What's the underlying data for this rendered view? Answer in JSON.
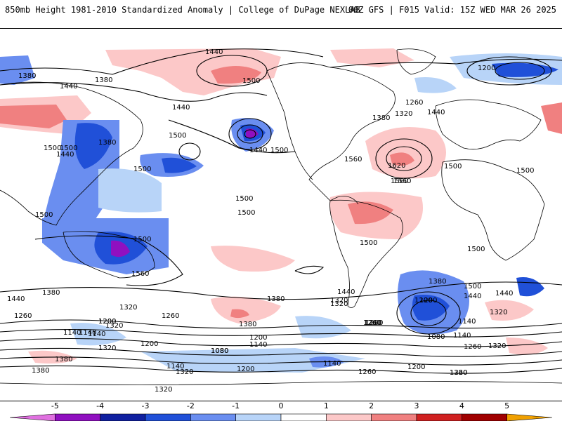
{
  "header": {
    "title": "850mb Height 1981-2010 Standardized Anomaly | College of DuPage NEXLAB",
    "run_info": "00Z GFS | F015 Valid: 15Z WED MAR 26 2025"
  },
  "colorbar": {
    "ticks": [
      "-5",
      "-4",
      "-3",
      "-2",
      "-1",
      "0",
      "1",
      "2",
      "3",
      "4",
      "5"
    ],
    "colors": [
      "#e070e0",
      "#9010c0",
      "#1020a0",
      "#2050d8",
      "#6a8ef0",
      "#b8d4f8",
      "#ffffff",
      "#fcc8c8",
      "#f08080",
      "#d02020",
      "#a00000",
      "#f0a000"
    ]
  },
  "map": {
    "contour_labels": [
      "1440",
      "1500",
      "1380",
      "1440",
      "1500",
      "1440",
      "1500",
      "1500",
      "1380",
      "1320",
      "1260",
      "1200",
      "1440",
      "1560",
      "1440",
      "1500",
      "1380",
      "1500",
      "1440",
      "1500",
      "1560",
      "1620",
      "1560",
      "1500",
      "1500",
      "1380",
      "1320",
      "1260",
      "1440",
      "1500",
      "1380",
      "1500",
      "1500",
      "1500",
      "1560",
      "1380",
      "1440",
      "1320",
      "1260",
      "1200",
      "1140",
      "1380",
      "1320",
      "1260",
      "1200",
      "1140",
      "1080",
      "1200",
      "1320",
      "1440",
      "1380",
      "1500",
      "1440",
      "1320",
      "1260",
      "1200",
      "1080",
      "1140",
      "1140",
      "1380",
      "1320",
      "1260",
      "1200",
      "1140",
      "1080",
      "1260",
      "1320",
      "1200",
      "1320",
      "1320",
      "1140",
      "1380",
      "1500",
      "1200",
      "1260",
      "1140",
      "1200",
      "1140",
      "1320",
      "1260"
    ]
  }
}
